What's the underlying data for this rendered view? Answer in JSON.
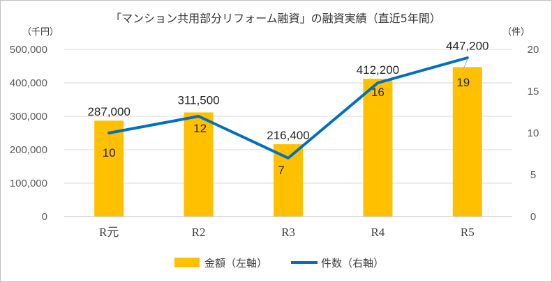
{
  "chart_data": {
    "type": "bar",
    "title": "「マンション共用部分リフォーム融資」の融資実績（直近5年間）",
    "y_left_unit": "（千円）",
    "y_right_unit": "（件）",
    "categories": [
      "R元",
      "R2",
      "R3",
      "R4",
      "R5"
    ],
    "series": [
      {
        "name": "金額（左軸）",
        "type": "bar",
        "axis": "left",
        "color": "#FFC000",
        "values": [
          287000,
          311500,
          216400,
          412200,
          447200
        ],
        "labels": [
          "287,000",
          "311,500",
          "216,400",
          "412,200",
          "447,200"
        ]
      },
      {
        "name": "件数（右軸）",
        "type": "line",
        "axis": "right",
        "color": "#0070C0",
        "values": [
          10,
          12,
          7,
          16,
          19
        ],
        "labels": [
          "10",
          "12",
          "7",
          "16",
          "19"
        ]
      }
    ],
    "y_left": {
      "min": 0,
      "max": 500000,
      "ticks": [
        0,
        100000,
        200000,
        300000,
        400000,
        500000
      ],
      "tick_labels": [
        "0",
        "100,000",
        "200,000",
        "300,000",
        "400,000",
        "500,000"
      ]
    },
    "y_right": {
      "min": 0,
      "max": 20,
      "ticks": [
        0,
        5,
        10,
        15,
        20
      ],
      "tick_labels": [
        "0",
        "5",
        "10",
        "15",
        "20"
      ]
    },
    "grid": true,
    "legend_position": "bottom",
    "colors": {
      "gridline": "#d9d9d9",
      "axis_line": "#bfbfbf",
      "leader_line": "#a6a6a6"
    }
  }
}
